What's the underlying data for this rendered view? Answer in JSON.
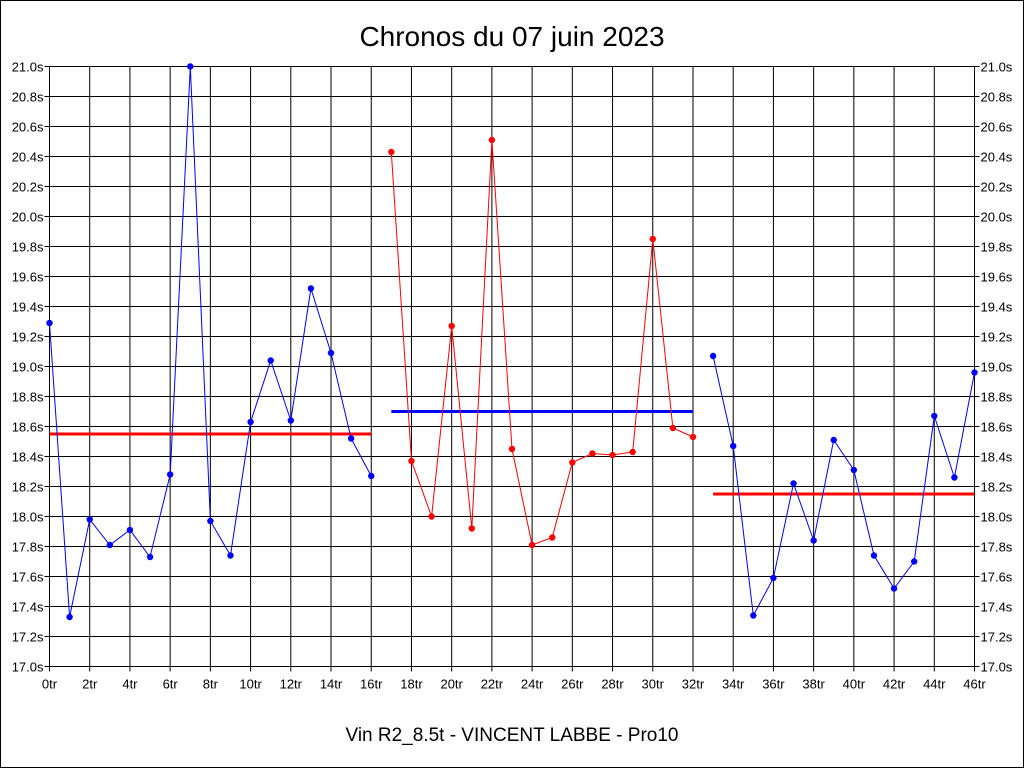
{
  "chart_data": {
    "type": "line",
    "title": "Chronos du 07 juin 2023",
    "xlabel": "Vin R2_8.5t - VINCENT LABBE - Pro10",
    "ylabel": "",
    "x_tick_labels": [
      "0tr",
      "2tr",
      "4tr",
      "6tr",
      "8tr",
      "10tr",
      "12tr",
      "14tr",
      "16tr",
      "18tr",
      "20tr",
      "22tr",
      "24tr",
      "26tr",
      "28tr",
      "30tr",
      "32tr",
      "34tr",
      "36tr",
      "38tr",
      "40tr",
      "42tr",
      "44tr",
      "46tr"
    ],
    "y_tick_labels": [
      "17.0s",
      "17.2s",
      "17.4s",
      "17.6s",
      "17.8s",
      "18.0s",
      "18.2s",
      "18.4s",
      "18.6s",
      "18.8s",
      "19.0s",
      "19.2s",
      "19.4s",
      "19.6s",
      "19.8s",
      "20.0s",
      "20.2s",
      "20.4s",
      "20.6s",
      "20.8s",
      "21.0s"
    ],
    "xlim": [
      0,
      46
    ],
    "ylim": [
      17.0,
      21.0
    ],
    "grid": true,
    "series": [
      {
        "color": "#0000ff",
        "points": [
          [
            0,
            19.29
          ],
          [
            1,
            17.33
          ],
          [
            2,
            17.98
          ],
          [
            3,
            17.81
          ],
          [
            4,
            17.91
          ],
          [
            5,
            17.73
          ],
          [
            6,
            18.28
          ],
          [
            7,
            21.0
          ],
          [
            8,
            17.97
          ],
          [
            9,
            17.74
          ],
          [
            10,
            18.63
          ],
          [
            11,
            19.04
          ],
          [
            12,
            18.64
          ],
          [
            13,
            19.52
          ],
          [
            14,
            19.09
          ],
          [
            15,
            18.52
          ],
          [
            16,
            18.27
          ]
        ]
      },
      {
        "color": "#ff0000",
        "points": [
          [
            17,
            20.43
          ],
          [
            18,
            18.37
          ],
          [
            19,
            18.0
          ],
          [
            20,
            19.27
          ],
          [
            21,
            17.92
          ],
          [
            22,
            20.51
          ],
          [
            23,
            18.45
          ],
          [
            24,
            17.81
          ],
          [
            25,
            17.86
          ],
          [
            26,
            18.36
          ],
          [
            27,
            18.42
          ],
          [
            28,
            18.41
          ],
          [
            29,
            18.43
          ],
          [
            30,
            19.85
          ],
          [
            31,
            18.59
          ],
          [
            32,
            18.53
          ]
        ]
      },
      {
        "color": "#0000ff",
        "points": [
          [
            33,
            19.07
          ],
          [
            34,
            18.47
          ],
          [
            35,
            17.34
          ],
          [
            36,
            17.59
          ],
          [
            37,
            18.22
          ],
          [
            38,
            17.84
          ],
          [
            39,
            18.51
          ],
          [
            40,
            18.31
          ],
          [
            41,
            17.74
          ],
          [
            42,
            17.52
          ],
          [
            43,
            17.7
          ],
          [
            44,
            18.67
          ],
          [
            45,
            18.26
          ],
          [
            46,
            18.96
          ]
        ]
      }
    ],
    "mean_lines": [
      {
        "color": "#ff0000",
        "x0": 0,
        "x1": 16,
        "y": 18.55
      },
      {
        "color": "#0000ff",
        "x0": 17,
        "x1": 32,
        "y": 18.7
      },
      {
        "color": "#ff0000",
        "x0": 33,
        "x1": 46,
        "y": 18.15
      }
    ]
  }
}
